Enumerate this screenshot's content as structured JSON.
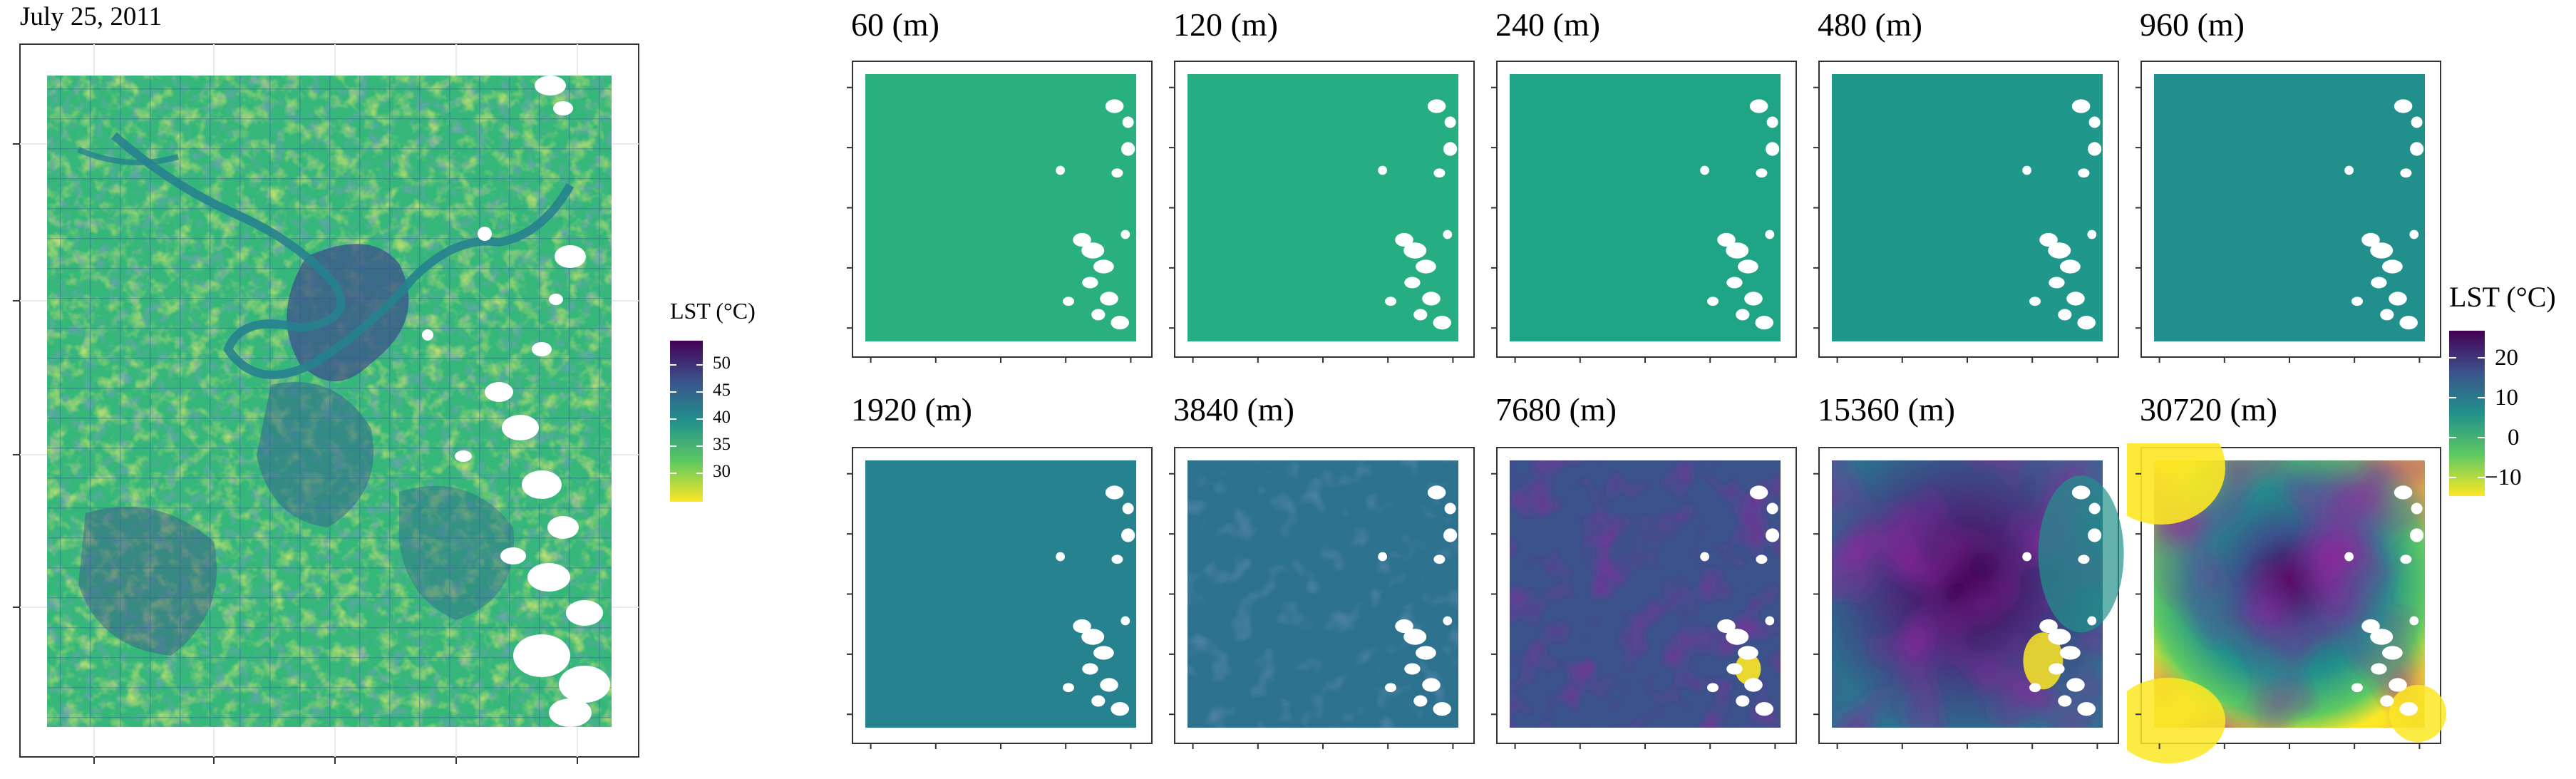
{
  "figure": {
    "date_label": "July 25, 2011"
  },
  "main_map": {
    "legend": {
      "title": "LST (°C)",
      "ticks": [
        "50",
        "45",
        "40",
        "35",
        "30"
      ]
    }
  },
  "panels": [
    {
      "scale": "60 (m)"
    },
    {
      "scale": "120 (m)"
    },
    {
      "scale": "240 (m)"
    },
    {
      "scale": "480 (m)"
    },
    {
      "scale": "960 (m)"
    },
    {
      "scale": "1920 (m)"
    },
    {
      "scale": "3840 (m)"
    },
    {
      "scale": "7680 (m)"
    },
    {
      "scale": "15360 (m)"
    },
    {
      "scale": "30720 (m)"
    }
  ],
  "panel_legend": {
    "title": "LST (°C)",
    "ticks": [
      "20",
      "10",
      "0",
      "−10"
    ]
  },
  "chart_data": [
    {
      "type": "heatmap",
      "title": "July 25, 2011",
      "colorbar_label": "LST (°C)",
      "colorbar_ticks": [
        30,
        35,
        40,
        45,
        50
      ],
      "colorbar_range": [
        27,
        53
      ],
      "colormap": "viridis (reversed: yellow low, purple high)"
    },
    {
      "type": "heatmap",
      "panels": [
        "60 (m)",
        "120 (m)",
        "240 (m)",
        "480 (m)",
        "960 (m)",
        "1920 (m)",
        "3840 (m)",
        "7680 (m)",
        "15360 (m)",
        "30720 (m)"
      ],
      "colorbar_label": "LST (°C)",
      "colorbar_ticks": [
        -10,
        0,
        10,
        20
      ],
      "colorbar_range": [
        -15,
        27
      ],
      "colormap": "viridis (reversed: yellow low, purple high)"
    }
  ],
  "colors": {
    "viridis_low": "#fde725",
    "viridis_mid": "#21918c",
    "viridis_high": "#440154"
  }
}
